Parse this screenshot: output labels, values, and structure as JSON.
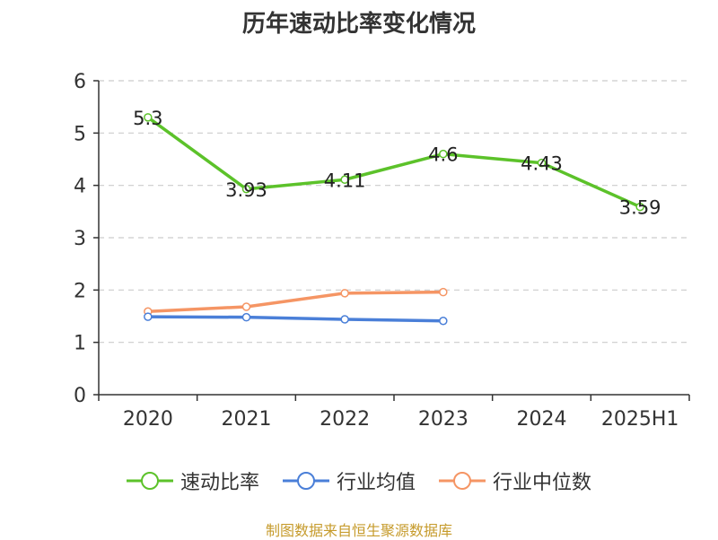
{
  "chart_data": {
    "type": "line",
    "title": "历年速动比率变化情况",
    "categories": [
      "2020",
      "2021",
      "2022",
      "2023",
      "2024",
      "2025H1"
    ],
    "ylim": [
      0,
      6
    ],
    "yticks": [
      "0",
      "1",
      "2",
      "3",
      "4",
      "5",
      "6"
    ],
    "grid": true,
    "legend_position": "bottom",
    "series": [
      {
        "name": "速动比率",
        "color": "#5cc22a",
        "values": [
          5.3,
          3.93,
          4.11,
          4.6,
          4.43,
          3.59
        ],
        "labels": [
          "5.3",
          "3.93",
          "4.11",
          "4.6",
          "4.43",
          "3.59"
        ]
      },
      {
        "name": "行业均值",
        "color": "#4a7fd8",
        "values": [
          1.49,
          1.48,
          1.44,
          1.41,
          null,
          null
        ]
      },
      {
        "name": "行业中位数",
        "color": "#f59564",
        "values": [
          1.59,
          1.68,
          1.94,
          1.96,
          null,
          null
        ]
      }
    ]
  },
  "source": "制图数据来自恒生聚源数据库"
}
